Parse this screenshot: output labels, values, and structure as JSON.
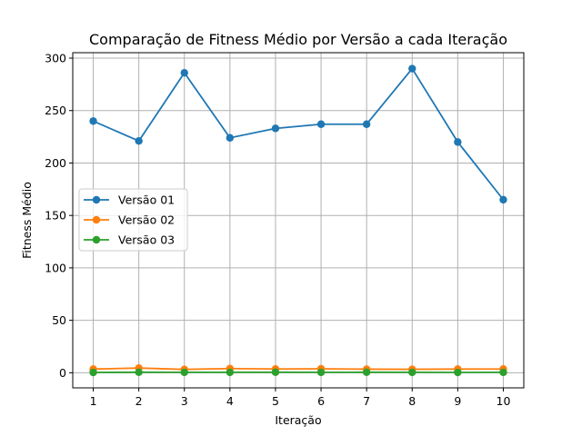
{
  "chart_data": {
    "type": "line",
    "title": "Comparação de Fitness Médio por Versão a cada Iteração",
    "xlabel": "Iteração",
    "ylabel": "Fitness Médio",
    "x": [
      1,
      2,
      3,
      4,
      5,
      6,
      7,
      8,
      9,
      10
    ],
    "xlim": [
      0.55,
      10.45
    ],
    "ylim": [
      -14.4,
      305.2
    ],
    "yticks": [
      0,
      50,
      100,
      150,
      200,
      250,
      300
    ],
    "grid": true,
    "legend_position": "center-left",
    "series": [
      {
        "name": "Versão 01",
        "color": "#1f77b4",
        "marker": "circle",
        "values": [
          240,
          221,
          286,
          224,
          233,
          237,
          237,
          290,
          220,
          165
        ]
      },
      {
        "name": "Versão 02",
        "color": "#ff7f0e",
        "marker": "circle",
        "values": [
          3.5,
          4.5,
          3.2,
          4.0,
          3.6,
          3.8,
          3.4,
          3.3,
          3.5,
          3.6
        ]
      },
      {
        "name": "Versão 03",
        "color": "#2ca02c",
        "marker": "circle",
        "values": [
          0.3,
          0.5,
          0.4,
          0.4,
          0.5,
          0.4,
          0.5,
          0.4,
          0.3,
          0.4
        ]
      }
    ]
  }
}
